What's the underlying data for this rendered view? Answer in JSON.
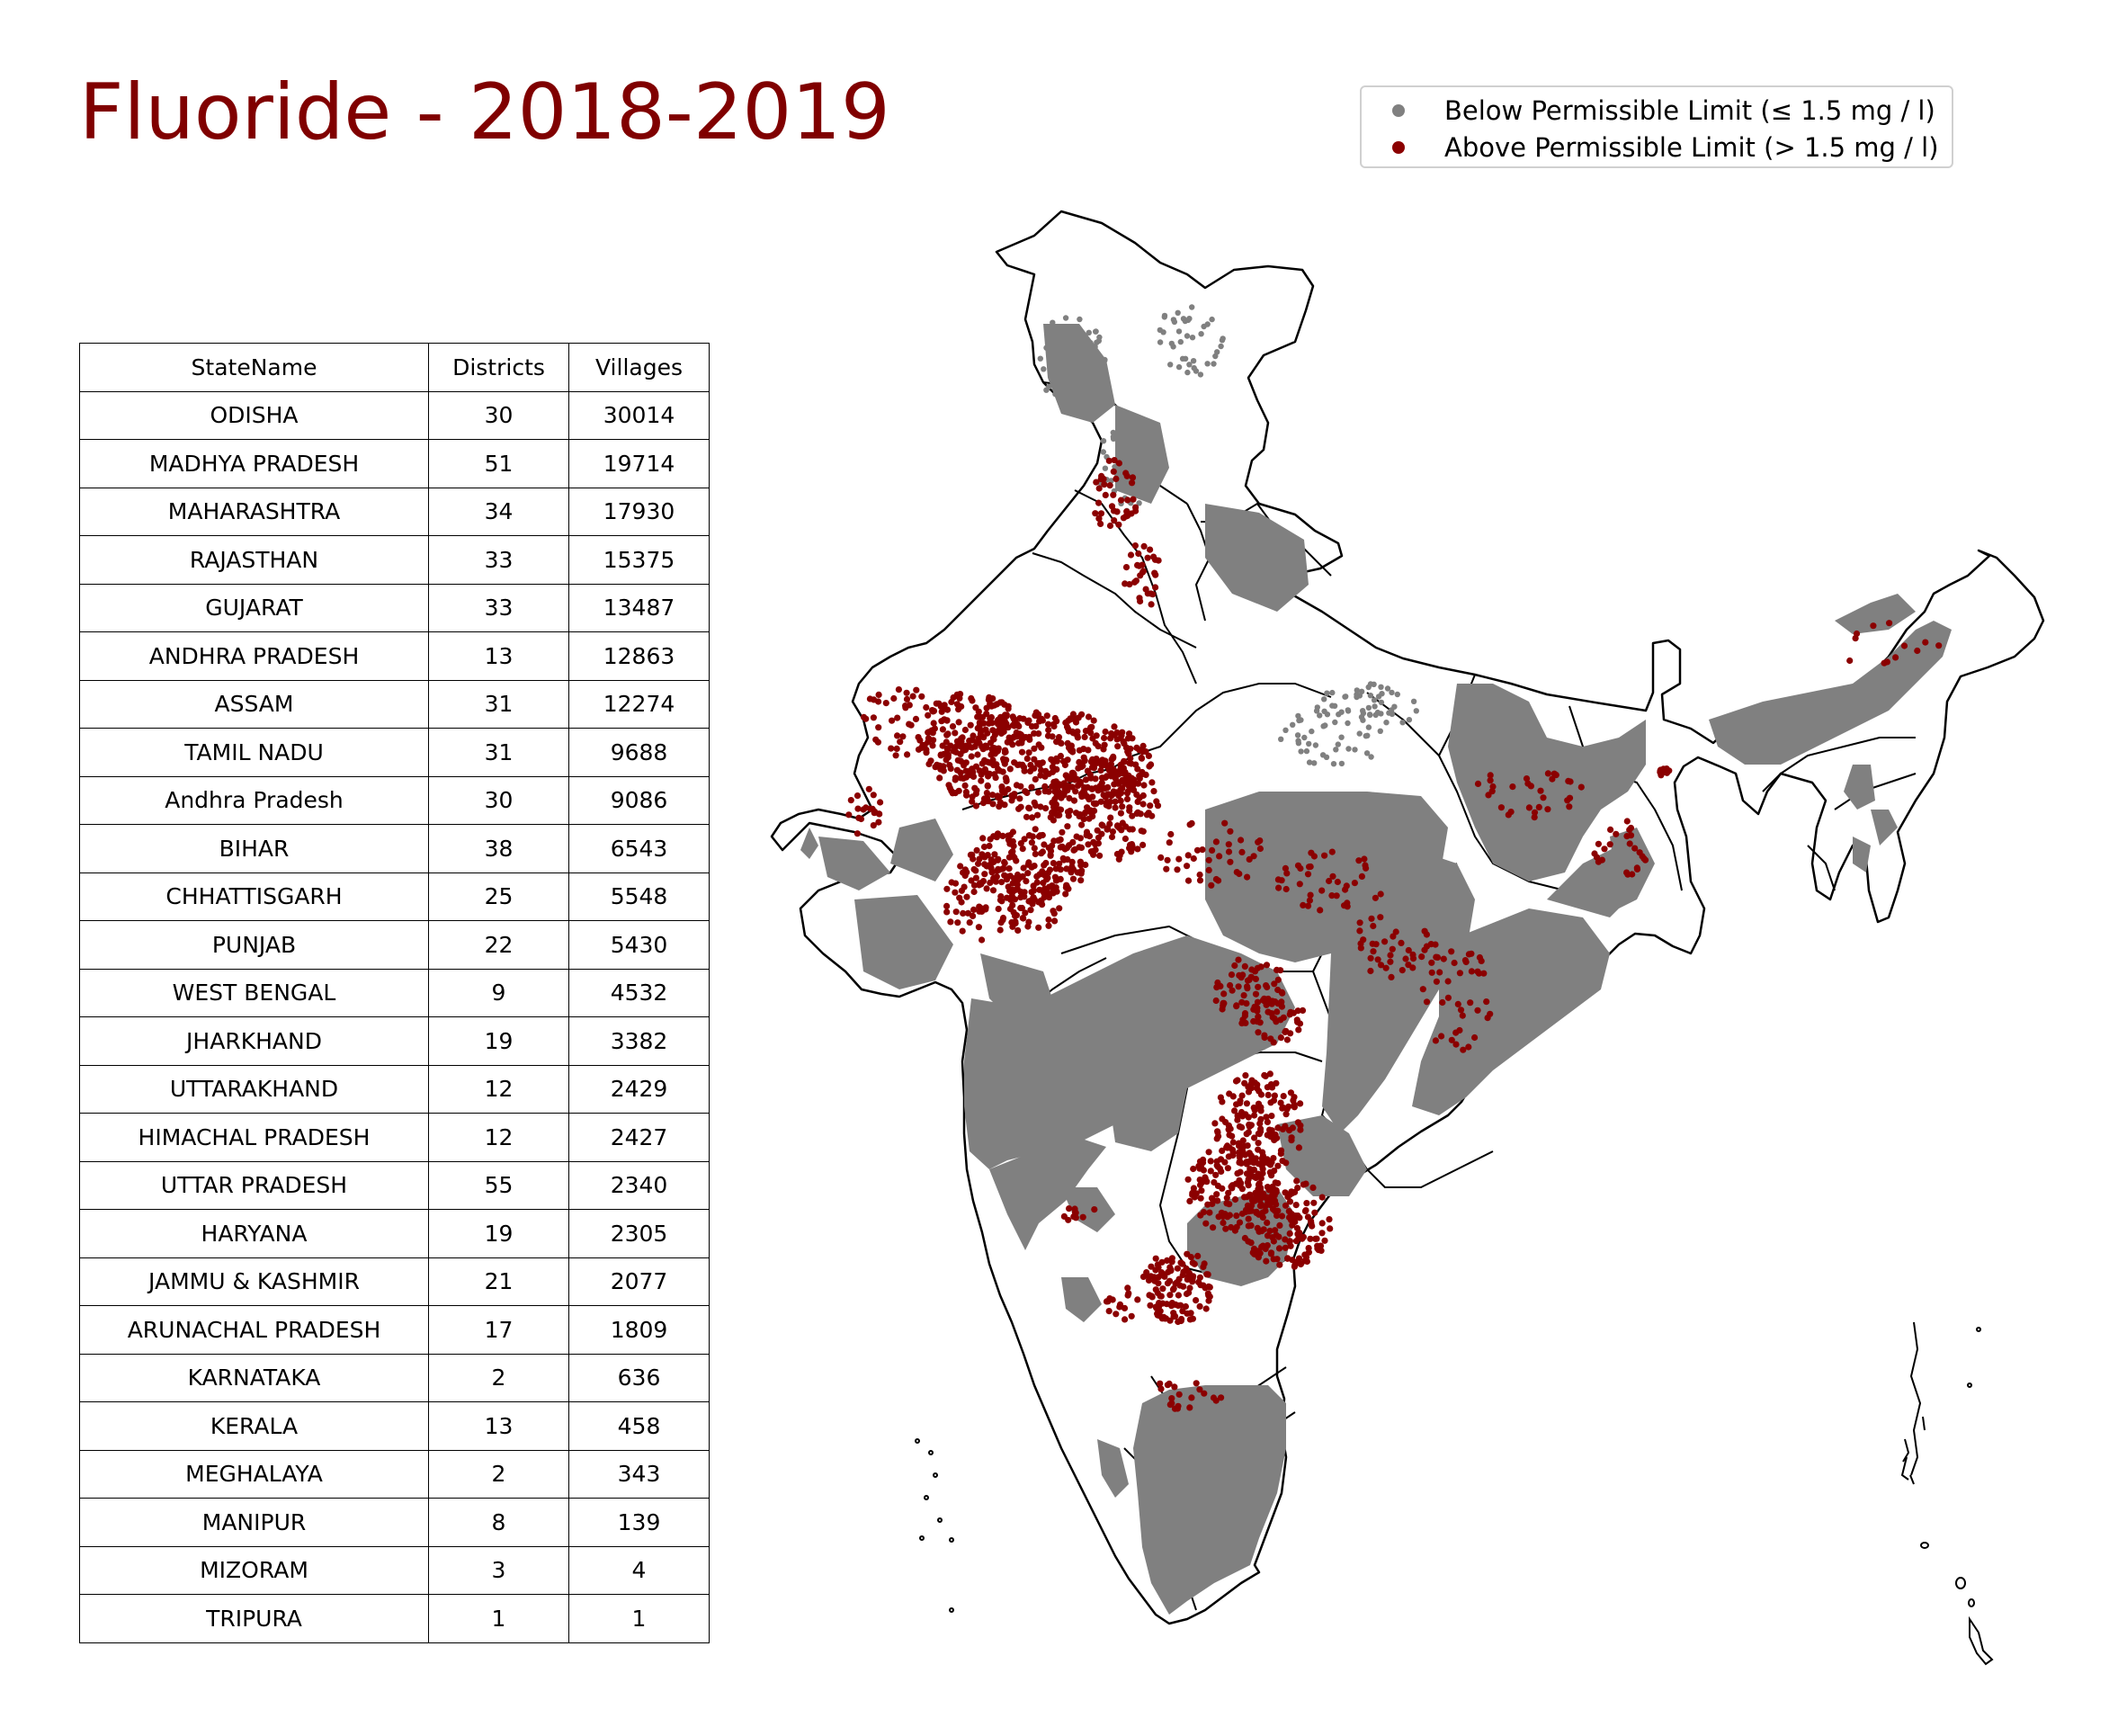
{
  "title": "Fluoride - 2018-2019",
  "legend": [
    {
      "label": "Below Permissible Limit (≤ 1.5 mg / l)",
      "color": "#808080"
    },
    {
      "label": "Above Permissible Limit (> 1.5 mg / l)",
      "color": "#8b0000"
    }
  ],
  "table": {
    "headers": [
      "StateName",
      "Districts",
      "Villages"
    ],
    "rows": [
      [
        "ODISHA",
        "30",
        "30014"
      ],
      [
        "MADHYA PRADESH",
        "51",
        "19714"
      ],
      [
        "MAHARASHTRA",
        "34",
        "17930"
      ],
      [
        "RAJASTHAN",
        "33",
        "15375"
      ],
      [
        "GUJARAT",
        "33",
        "13487"
      ],
      [
        "ANDHRA PRADESH",
        "13",
        "12863"
      ],
      [
        "ASSAM",
        "31",
        "12274"
      ],
      [
        "TAMIL NADU",
        "31",
        "9688"
      ],
      [
        "Andhra Pradesh",
        "30",
        "9086"
      ],
      [
        "BIHAR",
        "38",
        "6543"
      ],
      [
        "CHHATTISGARH",
        "25",
        "5548"
      ],
      [
        "PUNJAB",
        "22",
        "5430"
      ],
      [
        "WEST BENGAL",
        "9",
        "4532"
      ],
      [
        "JHARKHAND",
        "19",
        "3382"
      ],
      [
        "UTTARAKHAND",
        "12",
        "2429"
      ],
      [
        "HIMACHAL PRADESH",
        "12",
        "2427"
      ],
      [
        "UTTAR PRADESH",
        "55",
        "2340"
      ],
      [
        "HARYANA",
        "19",
        "2305"
      ],
      [
        "JAMMU & KASHMIR",
        "21",
        "2077"
      ],
      [
        "ARUNACHAL PRADESH",
        "17",
        "1809"
      ],
      [
        "KARNATAKA",
        "2",
        "636"
      ],
      [
        "KERALA",
        "13",
        "458"
      ],
      [
        "MEGHALAYA",
        "2",
        "343"
      ],
      [
        "MANIPUR",
        "8",
        "139"
      ],
      [
        "MIZORAM",
        "3",
        "4"
      ],
      [
        "TRIPURA",
        "1",
        "1"
      ]
    ]
  },
  "map": {
    "colors": {
      "below": "#808080",
      "above": "#8b0000",
      "outline": "#000000",
      "land": "#ffffff"
    }
  }
}
